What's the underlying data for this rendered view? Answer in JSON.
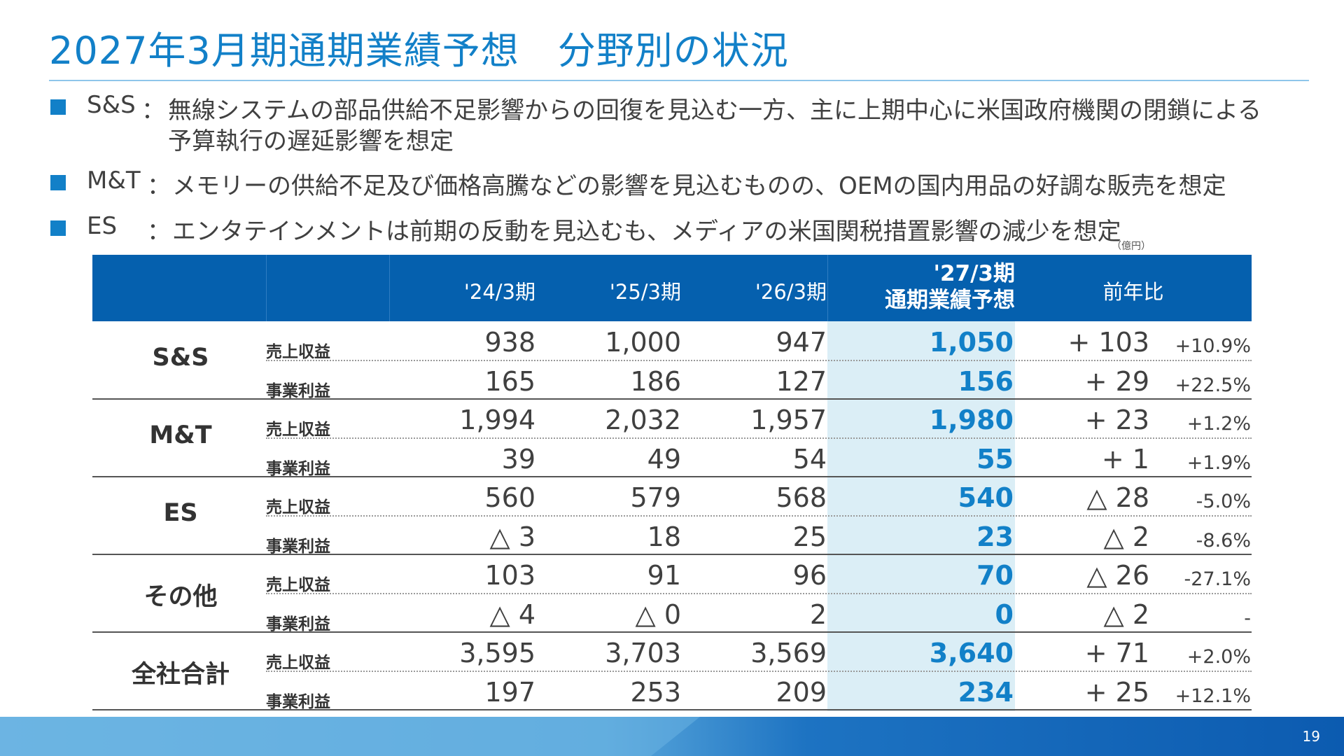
{
  "title": "2027年3月期通期業績予想　分野別の状況",
  "bullets": [
    {
      "label": "S&S",
      "sep": "：",
      "text_line1": "無線システムの部品供給不足影響からの回復を見込む一方、主に上期中心に米国政府機関の閉鎖による",
      "text_line2": "予算執行の遅延影響を想定"
    },
    {
      "label": "M&T",
      "sep": "：",
      "text_line1": "メモリーの供給不足及び価格高騰などの影響を見込むものの、OEMの国内用品の好調な販売を想定"
    },
    {
      "label": "ES",
      "sep": "：",
      "text_line1": "エンタテインメントは前期の反動を見込むも、メディアの米国関税措置影響の減少を想定"
    }
  ],
  "unit": "（億円）",
  "table": {
    "headers": {
      "fy24": "'24/3期",
      "fy25": "'25/3期",
      "fy26": "'26/3期",
      "fy27_line1": "'27/3期",
      "fy27_line2": "通期業績予想",
      "yoy": "前年比"
    },
    "segments": [
      {
        "name": "S&S",
        "rows": [
          {
            "label": "売上収益",
            "fy24": "938",
            "fy25": "1,000",
            "fy26": "947",
            "fy27": "1,050",
            "diff": "+ 103",
            "pct": "+10.9%"
          },
          {
            "label": "事業利益",
            "fy24": "165",
            "fy25": "186",
            "fy26": "127",
            "fy27": "156",
            "diff": "+ 29",
            "pct": "+22.5%"
          }
        ]
      },
      {
        "name": "M&T",
        "rows": [
          {
            "label": "売上収益",
            "fy24": "1,994",
            "fy25": "2,032",
            "fy26": "1,957",
            "fy27": "1,980",
            "diff": "+ 23",
            "pct": "+1.2%"
          },
          {
            "label": "事業利益",
            "fy24": "39",
            "fy25": "49",
            "fy26": "54",
            "fy27": "55",
            "diff": "+ 1",
            "pct": "+1.9%"
          }
        ]
      },
      {
        "name": "ES",
        "rows": [
          {
            "label": "売上収益",
            "fy24": "560",
            "fy25": "579",
            "fy26": "568",
            "fy27": "540",
            "diff": "△ 28",
            "pct": "-5.0%"
          },
          {
            "label": "事業利益",
            "fy24": "△ 3",
            "fy25": "18",
            "fy26": "25",
            "fy27": "23",
            "diff": "△ 2",
            "pct": "-8.6%"
          }
        ]
      },
      {
        "name": "その他",
        "rows": [
          {
            "label": "売上収益",
            "fy24": "103",
            "fy25": "91",
            "fy26": "96",
            "fy27": "70",
            "diff": "△ 26",
            "pct": "-27.1%"
          },
          {
            "label": "事業利益",
            "fy24": "△ 4",
            "fy25": "△ 0",
            "fy26": "2",
            "fy27": "0",
            "diff": "△ 2",
            "pct": "-"
          }
        ]
      },
      {
        "name": "全社合計",
        "rows": [
          {
            "label": "売上収益",
            "fy24": "3,595",
            "fy25": "3,703",
            "fy26": "3,569",
            "fy27": "3,640",
            "diff": "+ 71",
            "pct": "+2.0%"
          },
          {
            "label": "事業利益",
            "fy24": "197",
            "fy25": "253",
            "fy26": "209",
            "fy27": "234",
            "diff": "+ 25",
            "pct": "+12.1%"
          }
        ]
      }
    ]
  },
  "page_number": "19",
  "colors": {
    "accent": "#1280c8",
    "header_bg": "#0560ae",
    "highlight_col": "#dbeef6"
  }
}
